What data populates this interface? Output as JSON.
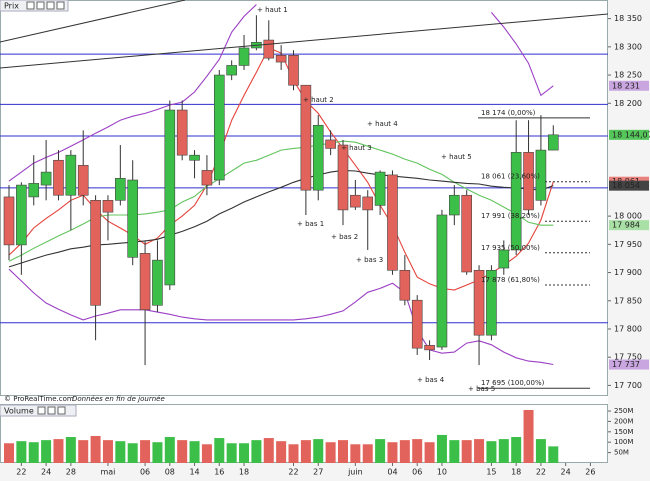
{
  "panel_title": "Prix",
  "source": "© ProRealTime.com",
  "note": "Données en fin de journée",
  "chart_data": {
    "type": "candlestick",
    "categories": [
      null,
      "22",
      null,
      "24",
      null,
      "28",
      null,
      null,
      "mai",
      null,
      null,
      "06",
      null,
      "08",
      null,
      "14",
      null,
      "16",
      null,
      "18",
      null,
      null,
      null,
      "22",
      null,
      "27",
      null,
      null,
      "juin",
      null,
      null,
      "04",
      null,
      "06",
      null,
      "10",
      null,
      null,
      null,
      "15",
      null,
      "18",
      null,
      "22",
      null,
      "24",
      null,
      "26"
    ],
    "open": [
      18034,
      17949,
      18034,
      18055,
      18099,
      18037,
      18090,
      18028,
      18028,
      18028,
      17927,
      17934,
      17842,
      17878,
      18188,
      18099,
      18081,
      18064,
      18250,
      18267,
      18298,
      18312,
      18285,
      18285,
      18232,
      18046,
      18135,
      18126,
      18037,
      18034,
      18019,
      18073,
      17904,
      17851,
      17771,
      17768,
      18002,
      18037,
      17904,
      17789,
      17908,
      17940,
      18113,
      18028,
      18117,
      null,
      null,
      null
    ],
    "high": [
      18055,
      18060,
      18108,
      18135,
      18117,
      18117,
      18152,
      18037,
      18037,
      18126,
      18099,
      17957,
      17957,
      18205,
      18205,
      18117,
      18108,
      18259,
      18276,
      18321,
      18356,
      18347,
      18303,
      18294,
      18232,
      18179,
      18152,
      18135,
      18064,
      18046,
      18081,
      18081,
      17931,
      17860,
      17780,
      18011,
      18055,
      18046,
      17913,
      17913,
      17957,
      18170,
      18170,
      18179,
      18161,
      null,
      null,
      null
    ],
    "low": [
      17922,
      17896,
      18019,
      18028,
      18028,
      17975,
      18019,
      17780,
      17957,
      18019,
      17913,
      17736,
      17830,
      17869,
      18099,
      18067,
      18037,
      18055,
      18241,
      18259,
      18294,
      18276,
      18259,
      18223,
      18002,
      18028,
      18108,
      17984,
      18011,
      17940,
      18002,
      17896,
      17842,
      17754,
      17745,
      17763,
      17984,
      17896,
      17736,
      17780,
      17896,
      17931,
      18002,
      18019,
      18117,
      null,
      null,
      null
    ],
    "close": [
      17949,
      18055,
      18058,
      18078,
      18037,
      18108,
      18037,
      17842,
      18007,
      18067,
      18064,
      17834,
      17922,
      18188,
      18108,
      18108,
      18055,
      18250,
      18267,
      18298,
      18308,
      18280,
      18273,
      18232,
      18046,
      18161,
      18120,
      18011,
      18016,
      18011,
      18078,
      17904,
      17851,
      17766,
      17763,
      18002,
      18037,
      17901,
      17789,
      17904,
      17940,
      18113,
      18011,
      18117,
      18144.07,
      null,
      null,
      null
    ],
    "up_color": "#3cbf48",
    "down_color": "#e2635b",
    "ylim": [
      17683,
      18383
    ],
    "yticks": [
      {
        "value": 18350,
        "label": "18 350"
      },
      {
        "value": 18300,
        "label": "18 300"
      },
      {
        "value": 18250,
        "label": "18 250"
      },
      {
        "value": 18200,
        "label": "18 200"
      },
      {
        "value": 18000,
        "label": "18 000"
      },
      {
        "value": 17950,
        "label": "17 950"
      },
      {
        "value": 17900,
        "label": "17 900"
      },
      {
        "value": 17850,
        "label": "17 850"
      },
      {
        "value": 17800,
        "label": "17 800"
      },
      {
        "value": 17750,
        "label": "17 750"
      },
      {
        "value": 17700,
        "label": "17 700"
      }
    ],
    "lines": [
      {
        "color": "#e5433b",
        "values": [
          17931,
          17952,
          17979,
          17996,
          18011,
          18028,
          18037,
          18012,
          17991,
          17979,
          17966,
          17950,
          17961,
          17984,
          18000,
          18019,
          18055,
          18108,
          18170,
          18214,
          18255,
          18298,
          18289,
          18241,
          18204,
          18182,
          18149,
          18120,
          18090,
          18060,
          18019,
          17984,
          17936,
          17892,
          17880,
          17872,
          17869,
          17878,
          17887,
          17899,
          17913,
          17929,
          17952,
          17993,
          18061,
          null,
          null,
          null
        ]
      },
      {
        "color": "#62c45e",
        "values": [
          17920,
          17931,
          17943,
          17954,
          17965,
          17975,
          17986,
          17998,
          18002,
          18002,
          18002,
          18004,
          18007,
          18011,
          18025,
          18035,
          18053,
          18066,
          18080,
          18094,
          18099,
          18108,
          18117,
          18120,
          18122,
          18126,
          18129,
          18133,
          18131,
          18124,
          18117,
          18110,
          18101,
          18094,
          18083,
          18074,
          18060,
          18048,
          18037,
          18028,
          18016,
          18004,
          17989,
          17984,
          17984,
          null,
          null,
          null
        ]
      },
      {
        "color": "#333333",
        "values": [
          17910,
          17917,
          17924,
          17931,
          17936,
          17942,
          17945,
          17949,
          17950,
          17952,
          17954,
          17956,
          17959,
          17966,
          17973,
          17981,
          17991,
          18004,
          18014,
          18025,
          18034,
          18043,
          18051,
          18060,
          18067,
          18073,
          18078,
          18081,
          18080,
          18076,
          18073,
          18071,
          18069,
          18067,
          18064,
          18062,
          18060,
          18058,
          18057,
          18053,
          18051,
          18050,
          18048,
          18046,
          18054,
          null,
          null,
          null
        ]
      },
      {
        "color": "#9b3fc4",
        "values": [
          18062,
          18078,
          18094,
          18104,
          18113,
          18124,
          18135,
          18147,
          18158,
          18170,
          18177,
          18182,
          18189,
          18197,
          18202,
          18220,
          18248,
          18278,
          18326,
          18354,
          18375,
          null,
          null,
          null,
          null,
          null,
          null,
          null,
          null,
          null,
          null,
          null,
          null,
          null,
          null,
          null,
          null,
          null,
          null,
          18361,
          18335,
          18305,
          18271,
          18214,
          18231,
          null,
          null,
          null
        ]
      },
      {
        "color": "#9b3fc4",
        "values": [
          17906,
          17885,
          17864,
          17846,
          17835,
          17825,
          17816,
          17823,
          17828,
          17834,
          17834,
          17834,
          17830,
          17826,
          17821,
          17818,
          17816,
          17816,
          17816,
          17816,
          17816,
          17816,
          17816,
          17816,
          17818,
          17821,
          17826,
          17832,
          17848,
          17865,
          17872,
          17881,
          17865,
          17798,
          17763,
          17757,
          17759,
          17775,
          17779,
          17772,
          17759,
          17749,
          17743,
          17741,
          17737,
          null,
          null,
          null
        ]
      }
    ],
    "hlines": {
      "color": "#2f2fcf",
      "values": [
        18287,
        18198,
        18142,
        18050,
        17811
      ]
    },
    "fibonacci": {
      "color": "#333333",
      "levels": [
        {
          "value": 18174,
          "label": "18 174 (0,00%)"
        },
        {
          "value": 18061,
          "label": "18 061 (23,60%)"
        },
        {
          "value": 17991,
          "label": "17 991 (38,20%)"
        },
        {
          "value": 17935,
          "label": "17 935 (50,00%)"
        },
        {
          "value": 17878,
          "label": "17 878 (61,80%)"
        },
        {
          "value": 17695,
          "label": "17 695 (100,00%)"
        }
      ]
    },
    "annotations": [
      "+ haut 1",
      "+ haut 2",
      "+ haut 3",
      "+ haut 4",
      "+ haut 5",
      "+ bas 1",
      "+ bas 2",
      "+ bas 3",
      "+ bas 4",
      "+ bas 5"
    ],
    "price_tags": [
      {
        "value": 18231,
        "label": "18 231",
        "color": "#c9a6e0"
      },
      {
        "value": 18144.07,
        "label": "18 144,07",
        "color": "#55c75a"
      },
      {
        "value": 18061,
        "label": "18 061",
        "color": "#e9827c"
      },
      {
        "value": 18054,
        "label": "18 054",
        "color": "#444444"
      },
      {
        "value": 17984,
        "label": "17 984",
        "color": "#a9e0a5"
      },
      {
        "value": 17737,
        "label": "17 737",
        "color": "#c9a6e0"
      }
    ],
    "volume": {
      "title": "Volume",
      "values": [
        95,
        105,
        100,
        110,
        115,
        125,
        110,
        130,
        110,
        105,
        95,
        110,
        100,
        125,
        110,
        105,
        90,
        120,
        95,
        95,
        110,
        120,
        105,
        90,
        110,
        115,
        100,
        110,
        90,
        90,
        115,
        100,
        110,
        115,
        100,
        135,
        110,
        110,
        115,
        105,
        115,
        125,
        255,
        115,
        80,
        null,
        null,
        null
      ],
      "ylim": [
        0,
        279
      ],
      "yticks": [
        {
          "value": 50,
          "label": "50M"
        },
        {
          "value": 100,
          "label": "100M"
        },
        {
          "value": 150,
          "label": "150M"
        },
        {
          "value": 200,
          "label": "200M"
        },
        {
          "value": 250,
          "label": "250M"
        }
      ]
    }
  }
}
